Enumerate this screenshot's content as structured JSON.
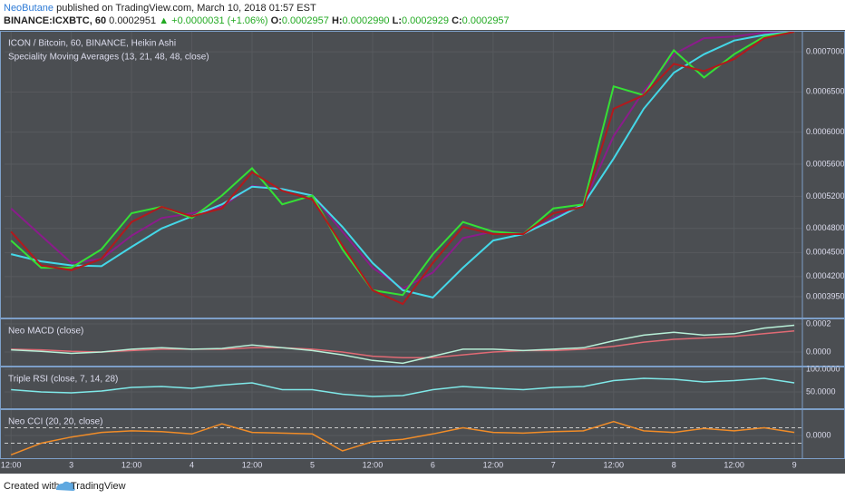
{
  "header": {
    "author": "NeoButane",
    "published": "published on TradingView.com, March 10, 2018 01:57 EST",
    "symbol": "BINANCE:ICXBTC, 60",
    "last": "0.0002951",
    "change": "▲ +0.0000031 (+1.06%)",
    "ohlc": [
      {
        "label": "O:",
        "value": "0.0002957"
      },
      {
        "label": "H:",
        "value": "0.0002990"
      },
      {
        "label": "L:",
        "value": "0.0002929"
      },
      {
        "label": "C:",
        "value": "0.0002957"
      }
    ]
  },
  "footer": {
    "created": "Created with",
    "brand": "TradingView"
  },
  "chart_data": [
    {
      "type": "line",
      "title": "ICON / Bitcoin, 60, BINANCE, Heikin Ashi",
      "subtitle": "Speciality Moving Averages (13, 21, 48, 48, close)",
      "x": [
        12,
        18,
        24,
        30,
        36,
        42,
        48,
        54,
        60,
        66,
        72,
        78,
        84,
        90,
        96,
        102,
        108,
        114,
        120,
        126,
        132,
        138,
        144,
        150,
        156,
        162,
        168
      ],
      "xlim": [
        10.7,
        169.6
      ],
      "ylim": [
        0.000369,
        0.000725
      ],
      "yticks": [
        {
          "value": 0.0007,
          "label": "0.0007000"
        },
        {
          "value": 0.00065,
          "label": "0.0006500"
        },
        {
          "value": 0.0006,
          "label": "0.0006000"
        },
        {
          "value": 0.00056,
          "label": "0.0005600"
        },
        {
          "value": 0.00052,
          "label": "0.0005200"
        },
        {
          "value": 0.00048,
          "label": "0.0004800"
        },
        {
          "value": 0.00045,
          "label": "0.0004500"
        },
        {
          "value": 0.00042,
          "label": "0.0004200"
        },
        {
          "value": 0.000395,
          "label": "0.0003950"
        }
      ],
      "series": [
        {
          "color": "#8b1c8b",
          "values": [
            0.000505,
            0.000471,
            0.000437,
            0.000442,
            0.000471,
            0.000493,
            0.000499,
            0.000507,
            0.000533,
            0.000529,
            0.000521,
            0.000476,
            0.000431,
            0.000405,
            0.000425,
            0.000468,
            0.000476,
            0.000473,
            0.000493,
            0.00051,
            0.000595,
            0.000651,
            0.000697,
            0.000717,
            0.000719,
            0.000724,
            0.000725
          ]
        },
        {
          "color": "#44d8e8",
          "values": [
            0.000448,
            0.000439,
            0.000434,
            0.000433,
            0.000457,
            0.00048,
            0.000495,
            0.00051,
            0.000532,
            0.000529,
            0.000521,
            0.000482,
            0.000437,
            0.000403,
            0.000394,
            0.000431,
            0.000465,
            0.000473,
            0.000491,
            0.00051,
            0.000567,
            0.000629,
            0.000674,
            0.000697,
            0.000714,
            0.000721,
            0.000725
          ]
        },
        {
          "color": "#35e035",
          "values": [
            0.000465,
            0.000431,
            0.000431,
            0.000454,
            0.000499,
            0.000507,
            0.000493,
            0.000521,
            0.000555,
            0.00051,
            0.000521,
            0.000454,
            0.000403,
            0.000397,
            0.000448,
            0.000488,
            0.000476,
            0.000473,
            0.000505,
            0.00051,
            0.000657,
            0.000646,
            0.000702,
            0.000668,
            0.000697,
            0.000719,
            0.000725
          ]
        },
        {
          "color": "#b3191c",
          "values": [
            0.000476,
            0.000434,
            0.000428,
            0.000442,
            0.000488,
            0.000507,
            0.000495,
            0.000505,
            0.00055,
            0.000527,
            0.000516,
            0.000459,
            0.000403,
            0.000386,
            0.000437,
            0.000482,
            0.000473,
            0.000473,
            0.000499,
            0.000507,
            0.000629,
            0.000646,
            0.000685,
            0.000676,
            0.000691,
            0.000717,
            0.000725
          ]
        }
      ]
    },
    {
      "type": "line",
      "title": "Neo MACD (close)",
      "x": [
        12,
        18,
        24,
        30,
        36,
        42,
        48,
        54,
        60,
        66,
        72,
        78,
        84,
        90,
        96,
        102,
        108,
        114,
        120,
        126,
        132,
        138,
        144,
        150,
        156,
        162,
        168
      ],
      "xlim": [
        10.7,
        169.6
      ],
      "ylim": [
        -9.7e-05,
        0.000232
      ],
      "yticks": [
        {
          "value": 0.0002,
          "label": "0.0002"
        },
        {
          "value": 0,
          "label": "0.0000"
        }
      ],
      "series": [
        {
          "color": "#e06a74",
          "values": [
            2e-05,
            1.5e-05,
            5e-06,
            0,
            1e-05,
            2e-05,
            2e-05,
            2e-05,
            3e-05,
            3e-05,
            2e-05,
            0,
            -3e-05,
            -4e-05,
            -4e-05,
            -2e-05,
            0,
            1e-05,
            1e-05,
            2e-05,
            4e-05,
            7e-05,
            9e-05,
            0.0001,
            0.00011,
            0.00013,
            0.00015
          ]
        },
        {
          "color": "#b8f0d8",
          "values": [
            1.5e-05,
            5e-06,
            -1e-05,
            0,
            2e-05,
            3e-05,
            2e-05,
            2.5e-05,
            5e-05,
            3e-05,
            1e-05,
            -2e-05,
            -6e-05,
            -8e-05,
            -3e-05,
            2e-05,
            2e-05,
            1e-05,
            2e-05,
            3e-05,
            8e-05,
            0.00012,
            0.00014,
            0.00012,
            0.00013,
            0.00017,
            0.00019
          ]
        }
      ]
    },
    {
      "type": "line",
      "title": "Triple RSI (close, 7, 14, 28)",
      "x": [
        12,
        18,
        24,
        30,
        36,
        42,
        48,
        54,
        60,
        66,
        72,
        78,
        84,
        90,
        96,
        102,
        108,
        114,
        120,
        126,
        132,
        138,
        144,
        150,
        156,
        162,
        168
      ],
      "xlim": [
        10.7,
        169.6
      ],
      "ylim": [
        14,
        104
      ],
      "yticks": [
        {
          "value": 100,
          "label": "100.0000"
        },
        {
          "value": 50,
          "label": "50.0000"
        }
      ],
      "series": [
        {
          "color": "#7fe8e8",
          "values": [
            55,
            50,
            48,
            52,
            60,
            62,
            58,
            65,
            70,
            55,
            55,
            45,
            40,
            42,
            55,
            62,
            58,
            55,
            60,
            62,
            75,
            80,
            78,
            72,
            75,
            80,
            70
          ]
        }
      ]
    },
    {
      "type": "line",
      "title": "Neo CCI (20, 20, close)",
      "x": [
        12,
        18,
        24,
        30,
        36,
        42,
        48,
        54,
        60,
        66,
        72,
        78,
        84,
        90,
        96,
        102,
        108,
        114,
        120,
        126,
        132,
        138,
        144,
        150,
        156,
        162,
        168
      ],
      "xlim": [
        10.7,
        169.6
      ],
      "ylim": [
        -294,
        329
      ],
      "yticks": [
        {
          "value": 0,
          "label": "0.0000"
        }
      ],
      "levels": [
        100,
        -100
      ],
      "xticks": [
        {
          "value": 12,
          "label": "12:00"
        },
        {
          "value": 24,
          "label": "3"
        },
        {
          "value": 36,
          "label": "12:00"
        },
        {
          "value": 48,
          "label": "4"
        },
        {
          "value": 60,
          "label": "12:00"
        },
        {
          "value": 72,
          "label": "5"
        },
        {
          "value": 84,
          "label": "12:00"
        },
        {
          "value": 96,
          "label": "6"
        },
        {
          "value": 108,
          "label": "12:00"
        },
        {
          "value": 120,
          "label": "7"
        },
        {
          "value": 132,
          "label": "12:00"
        },
        {
          "value": 144,
          "label": "8"
        },
        {
          "value": 156,
          "label": "12:00"
        },
        {
          "value": 168,
          "label": "9"
        }
      ],
      "series": [
        {
          "color": "#f08c28",
          "values": [
            -250,
            -100,
            -20,
            40,
            60,
            50,
            20,
            150,
            40,
            30,
            20,
            -200,
            -80,
            -50,
            20,
            100,
            40,
            30,
            50,
            60,
            180,
            60,
            40,
            90,
            60,
            100,
            40
          ]
        }
      ]
    }
  ]
}
